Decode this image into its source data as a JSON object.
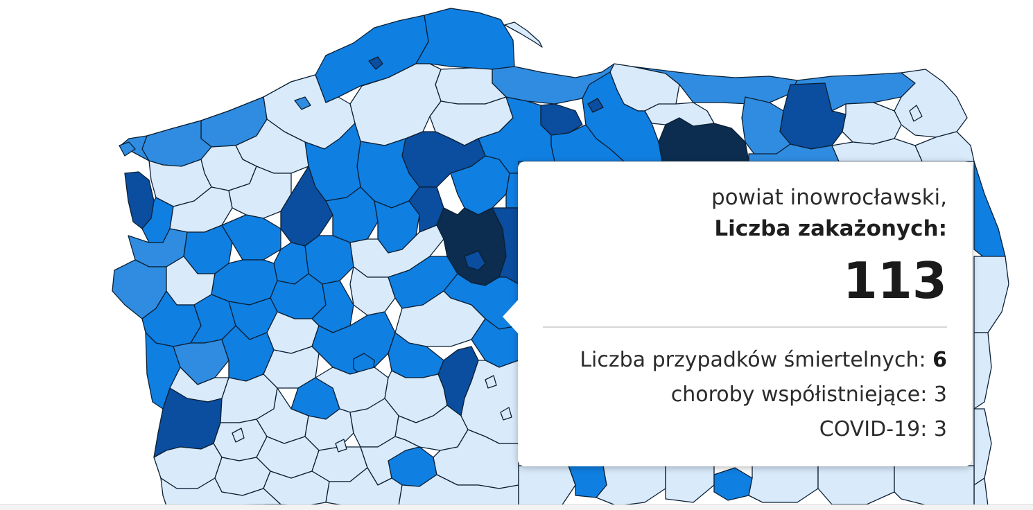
{
  "map": {
    "legend_colors": {
      "lightest": "#d9eafb",
      "medium": "#2f8ce0",
      "bright": "#0f7fe2",
      "dark": "#0b4d9e",
      "darkest": "#0c2d4f",
      "border": "#0b1f33"
    }
  },
  "tooltip": {
    "region": "powiat inowrocławski,",
    "metric_label": "Liczba zakażonych:",
    "metric_value": "113",
    "deaths_label": "Liczba przypadków śmiertelnych:",
    "deaths_value": "6",
    "comorbid_label": "choroby współistniejące:",
    "comorbid_value": "3",
    "covid_label": "COVID-19:",
    "covid_value": "3"
  }
}
